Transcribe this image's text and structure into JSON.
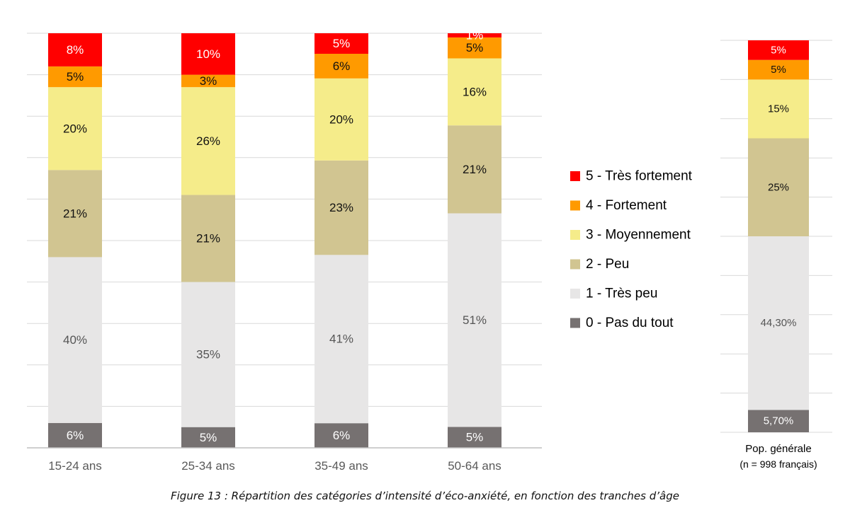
{
  "caption": "Figure 13 : Répartition des catégories d’intensité d’éco-anxiété, en fonction des tranches d’âge",
  "chart_data": [
    {
      "type": "bar",
      "stacked": true,
      "categories": [
        "15-24 ans",
        "25-34 ans",
        "35-49 ans",
        "50-64 ans"
      ],
      "series": [
        {
          "name": "0 - Pas du tout",
          "values": [
            6,
            5,
            6,
            5
          ],
          "labels": [
            "6%",
            "5%",
            "6%",
            "5%"
          ]
        },
        {
          "name": "1 - Très peu",
          "values": [
            40,
            35,
            41,
            51
          ],
          "labels": [
            "40%",
            "35%",
            "41%",
            "51%"
          ]
        },
        {
          "name": "2 - Peu",
          "values": [
            21,
            21,
            23,
            21
          ],
          "labels": [
            "21%",
            "21%",
            "23%",
            "21%"
          ]
        },
        {
          "name": "3 - Moyennement",
          "values": [
            20,
            26,
            20,
            16
          ],
          "labels": [
            "20%",
            "26%",
            "20%",
            "16%"
          ]
        },
        {
          "name": "4 - Fortement",
          "values": [
            5,
            3,
            6,
            5
          ],
          "labels": [
            "5%",
            "3%",
            "6%",
            "5%"
          ]
        },
        {
          "name": "5 - Très fortement",
          "values": [
            8,
            10,
            5,
            1
          ],
          "labels": [
            "8%",
            "10%",
            "5%",
            "1%"
          ]
        }
      ],
      "ylim": [
        0,
        100
      ],
      "grid": true,
      "legend": "right"
    },
    {
      "type": "bar",
      "stacked": true,
      "categories": [
        "Pop. générale"
      ],
      "subtitle": "(n = 998 français)",
      "series": [
        {
          "name": "0 - Pas du tout",
          "values": [
            5.7
          ],
          "labels": [
            "5,70%"
          ]
        },
        {
          "name": "1 - Très peu",
          "values": [
            44.3
          ],
          "labels": [
            "44,30%"
          ]
        },
        {
          "name": "2 - Peu",
          "values": [
            25
          ],
          "labels": [
            "25%"
          ]
        },
        {
          "name": "3 - Moyennement",
          "values": [
            15
          ],
          "labels": [
            "15%"
          ]
        },
        {
          "name": "4 - Fortement",
          "values": [
            5
          ],
          "labels": [
            "5%"
          ]
        },
        {
          "name": "5 - Très fortement",
          "values": [
            5
          ],
          "labels": [
            "5%"
          ]
        }
      ],
      "ylim": [
        0,
        100
      ],
      "grid": true
    }
  ],
  "colors": [
    "#767171",
    "#e7e6e6",
    "#d1c591",
    "#f5ec8a",
    "#ff9a00",
    "#ff0000"
  ],
  "label_colors": [
    "#ffffff",
    "#555555",
    "#111111",
    "#111111",
    "#111111",
    "#ffffff"
  ]
}
